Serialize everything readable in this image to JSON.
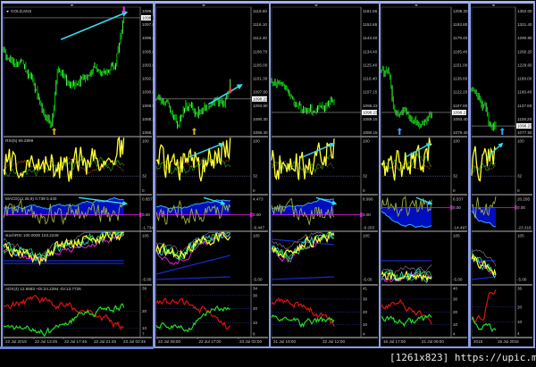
{
  "colors": {
    "background": "#000000",
    "window_frame": "#8c9ce6",
    "panel_separator": "#8a8a8a",
    "candles": "#00c400",
    "rsi": "#ffff33",
    "macd_fill": "#0010d0",
    "macd_line": "#39a8ff",
    "signal": "#a0b040",
    "trend_arrow": "#33ddee",
    "adx_plus": "#22dd22",
    "adx_minus": "#dd1111",
    "zero_line": "#cc22cc"
  },
  "windows": [
    {
      "symbol": "GOLD,M15",
      "current_price": "1098.23",
      "price_axis": [
        "1099.15",
        "1097.80",
        "1096.40",
        "1095.00",
        "1093.65",
        "1092.25",
        "1090.85",
        "1089.50",
        "1088.10",
        "1086.70"
      ],
      "rsi_label": "RSI(5) 69.2899",
      "rsi_axis": [
        "100",
        "32",
        "0"
      ],
      "macd_label": "MACD(12,26,9) 0.739 0.440",
      "macd_axis": [
        "0.857",
        "0.00",
        "-1.734"
      ],
      "stoch_label": "stochRSI 100.0000 103.2249",
      "stoch_axis": [
        "105",
        "-5.00"
      ],
      "adx_label": "ADX(4) 12.6583 +DI:24.2294 -DI:13.7726",
      "adx_axis": [
        "39",
        "20",
        "10",
        "7"
      ],
      "time_axis": [
        "22 Jul 2015",
        "22 Jul 13:45",
        "22 Jul 17:45",
        "22 Jul 21:45",
        "23 Jul 02:45"
      ]
    },
    {
      "current_price": "1098.23",
      "price_axis": [
        "1119.60",
        "1116.10",
        "1112.40",
        "1108.70",
        "1105.00",
        "1101.30",
        "1097.60",
        "1093.90",
        "1090.30",
        "1086.40"
      ],
      "rsi_axis": [
        "100",
        "32",
        "0"
      ],
      "macd_axis": [
        "4.473",
        "0.00",
        "-8.447"
      ],
      "stoch_axis": [
        "105",
        "-5.00"
      ],
      "adx_axis": [
        "34",
        "30",
        "20",
        "10",
        "6"
      ],
      "time_axis": [
        "22 Jul 09:00",
        "22 Jul 17:00",
        "23 Jul 02:00"
      ]
    },
    {
      "current_price": "1098.23",
      "price_axis": [
        "1161.65",
        "1152.65",
        "1143.40",
        "1134.40",
        "1125.40",
        "1116.40",
        "1107.15",
        "1098.23",
        "1089.15",
        "1080.15"
      ],
      "rsi_axis": [
        "100",
        "32",
        "0"
      ],
      "macd_axis": [
        "8.996",
        "0.00",
        "-9.203"
      ],
      "stoch_axis": [
        "105",
        "-5.00"
      ],
      "adx_axis": [
        "41",
        "30",
        "20",
        "10",
        "4"
      ],
      "time_axis": [
        "21 Jul 19:00",
        "22 Jul 12:00"
      ]
    },
    {
      "current_price": "1098.23",
      "price_axis": [
        "1208.20",
        "1193.80",
        "1179.40",
        "1165.40",
        "1151.00",
        "1136.60",
        "1122.20",
        "1107.80",
        "1093.40",
        "1079.40"
      ],
      "rsi_axis": [
        "100",
        "32",
        "0"
      ],
      "macd_axis": [
        "6.537",
        "0.00",
        "-14.497"
      ],
      "stoch_axis": [
        "105",
        "-5.00"
      ],
      "adx_axis": [
        "40",
        "30",
        "20",
        "10",
        "4"
      ],
      "time_axis": [
        "16 Jul 17:00",
        "21 Jul 09:00"
      ]
    },
    {
      "current_price": "1098.23",
      "price_axis": [
        "1352.00",
        "1321.40",
        "1290.80",
        "1260.20",
        "1229.60",
        "1199.00",
        "1168.40",
        "1137.80",
        "1108.20",
        "1077.50"
      ],
      "rsi_axis": [
        "100",
        "32",
        "0"
      ],
      "macd_axis": [
        "20.295",
        "0.00",
        "-23.316"
      ],
      "stoch_axis": [
        "105",
        "-5.00"
      ],
      "adx_axis": [
        "36",
        "20",
        "10",
        "4"
      ],
      "time_axis": [
        "2015",
        "15 Jul 2015"
      ]
    }
  ],
  "watermark": "[1261x823] https://upic.me/"
}
